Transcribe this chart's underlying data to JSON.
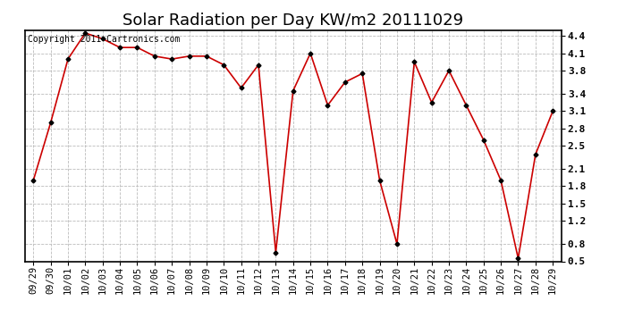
{
  "title": "Solar Radiation per Day KW/m2 20111029",
  "copyright": "Copyright 2011 Cartronics.com",
  "x_labels": [
    "09/29",
    "09/30",
    "10/01",
    "10/02",
    "10/03",
    "10/04",
    "10/05",
    "10/06",
    "10/07",
    "10/08",
    "10/09",
    "10/10",
    "10/11",
    "10/12",
    "10/13",
    "10/14",
    "10/15",
    "10/16",
    "10/17",
    "10/18",
    "10/19",
    "10/20",
    "10/21",
    "10/22",
    "10/23",
    "10/24",
    "10/25",
    "10/26",
    "10/27",
    "10/28",
    "10/29"
  ],
  "y_values": [
    1.9,
    2.9,
    4.0,
    4.45,
    4.35,
    4.2,
    4.2,
    4.05,
    4.0,
    4.05,
    4.05,
    3.9,
    3.5,
    3.9,
    0.65,
    3.45,
    4.1,
    3.2,
    3.6,
    3.75,
    1.9,
    0.8,
    3.95,
    3.25,
    3.8,
    3.2,
    2.6,
    1.9,
    0.55,
    2.35,
    3.1
  ],
  "line_color": "#cc0000",
  "marker": "D",
  "marker_size": 2.5,
  "ylim": [
    0.5,
    4.5
  ],
  "yticks": [
    0.5,
    0.8,
    1.2,
    1.5,
    1.8,
    2.1,
    2.5,
    2.8,
    3.1,
    3.4,
    3.8,
    4.1,
    4.4
  ],
  "ytick_labels": [
    "0.5",
    "0.8",
    "1.2",
    "1.5",
    "1.8",
    "2.1",
    "2.5",
    "2.8",
    "3.1",
    "3.4",
    "3.8",
    "4.1",
    "4.4"
  ],
  "bg_color": "#ffffff",
  "plot_bg_color": "#ffffff",
  "grid_color": "#bbbbbb",
  "title_fontsize": 13,
  "copyright_fontsize": 7,
  "tick_fontsize": 7.5,
  "ytick_fontsize": 8
}
